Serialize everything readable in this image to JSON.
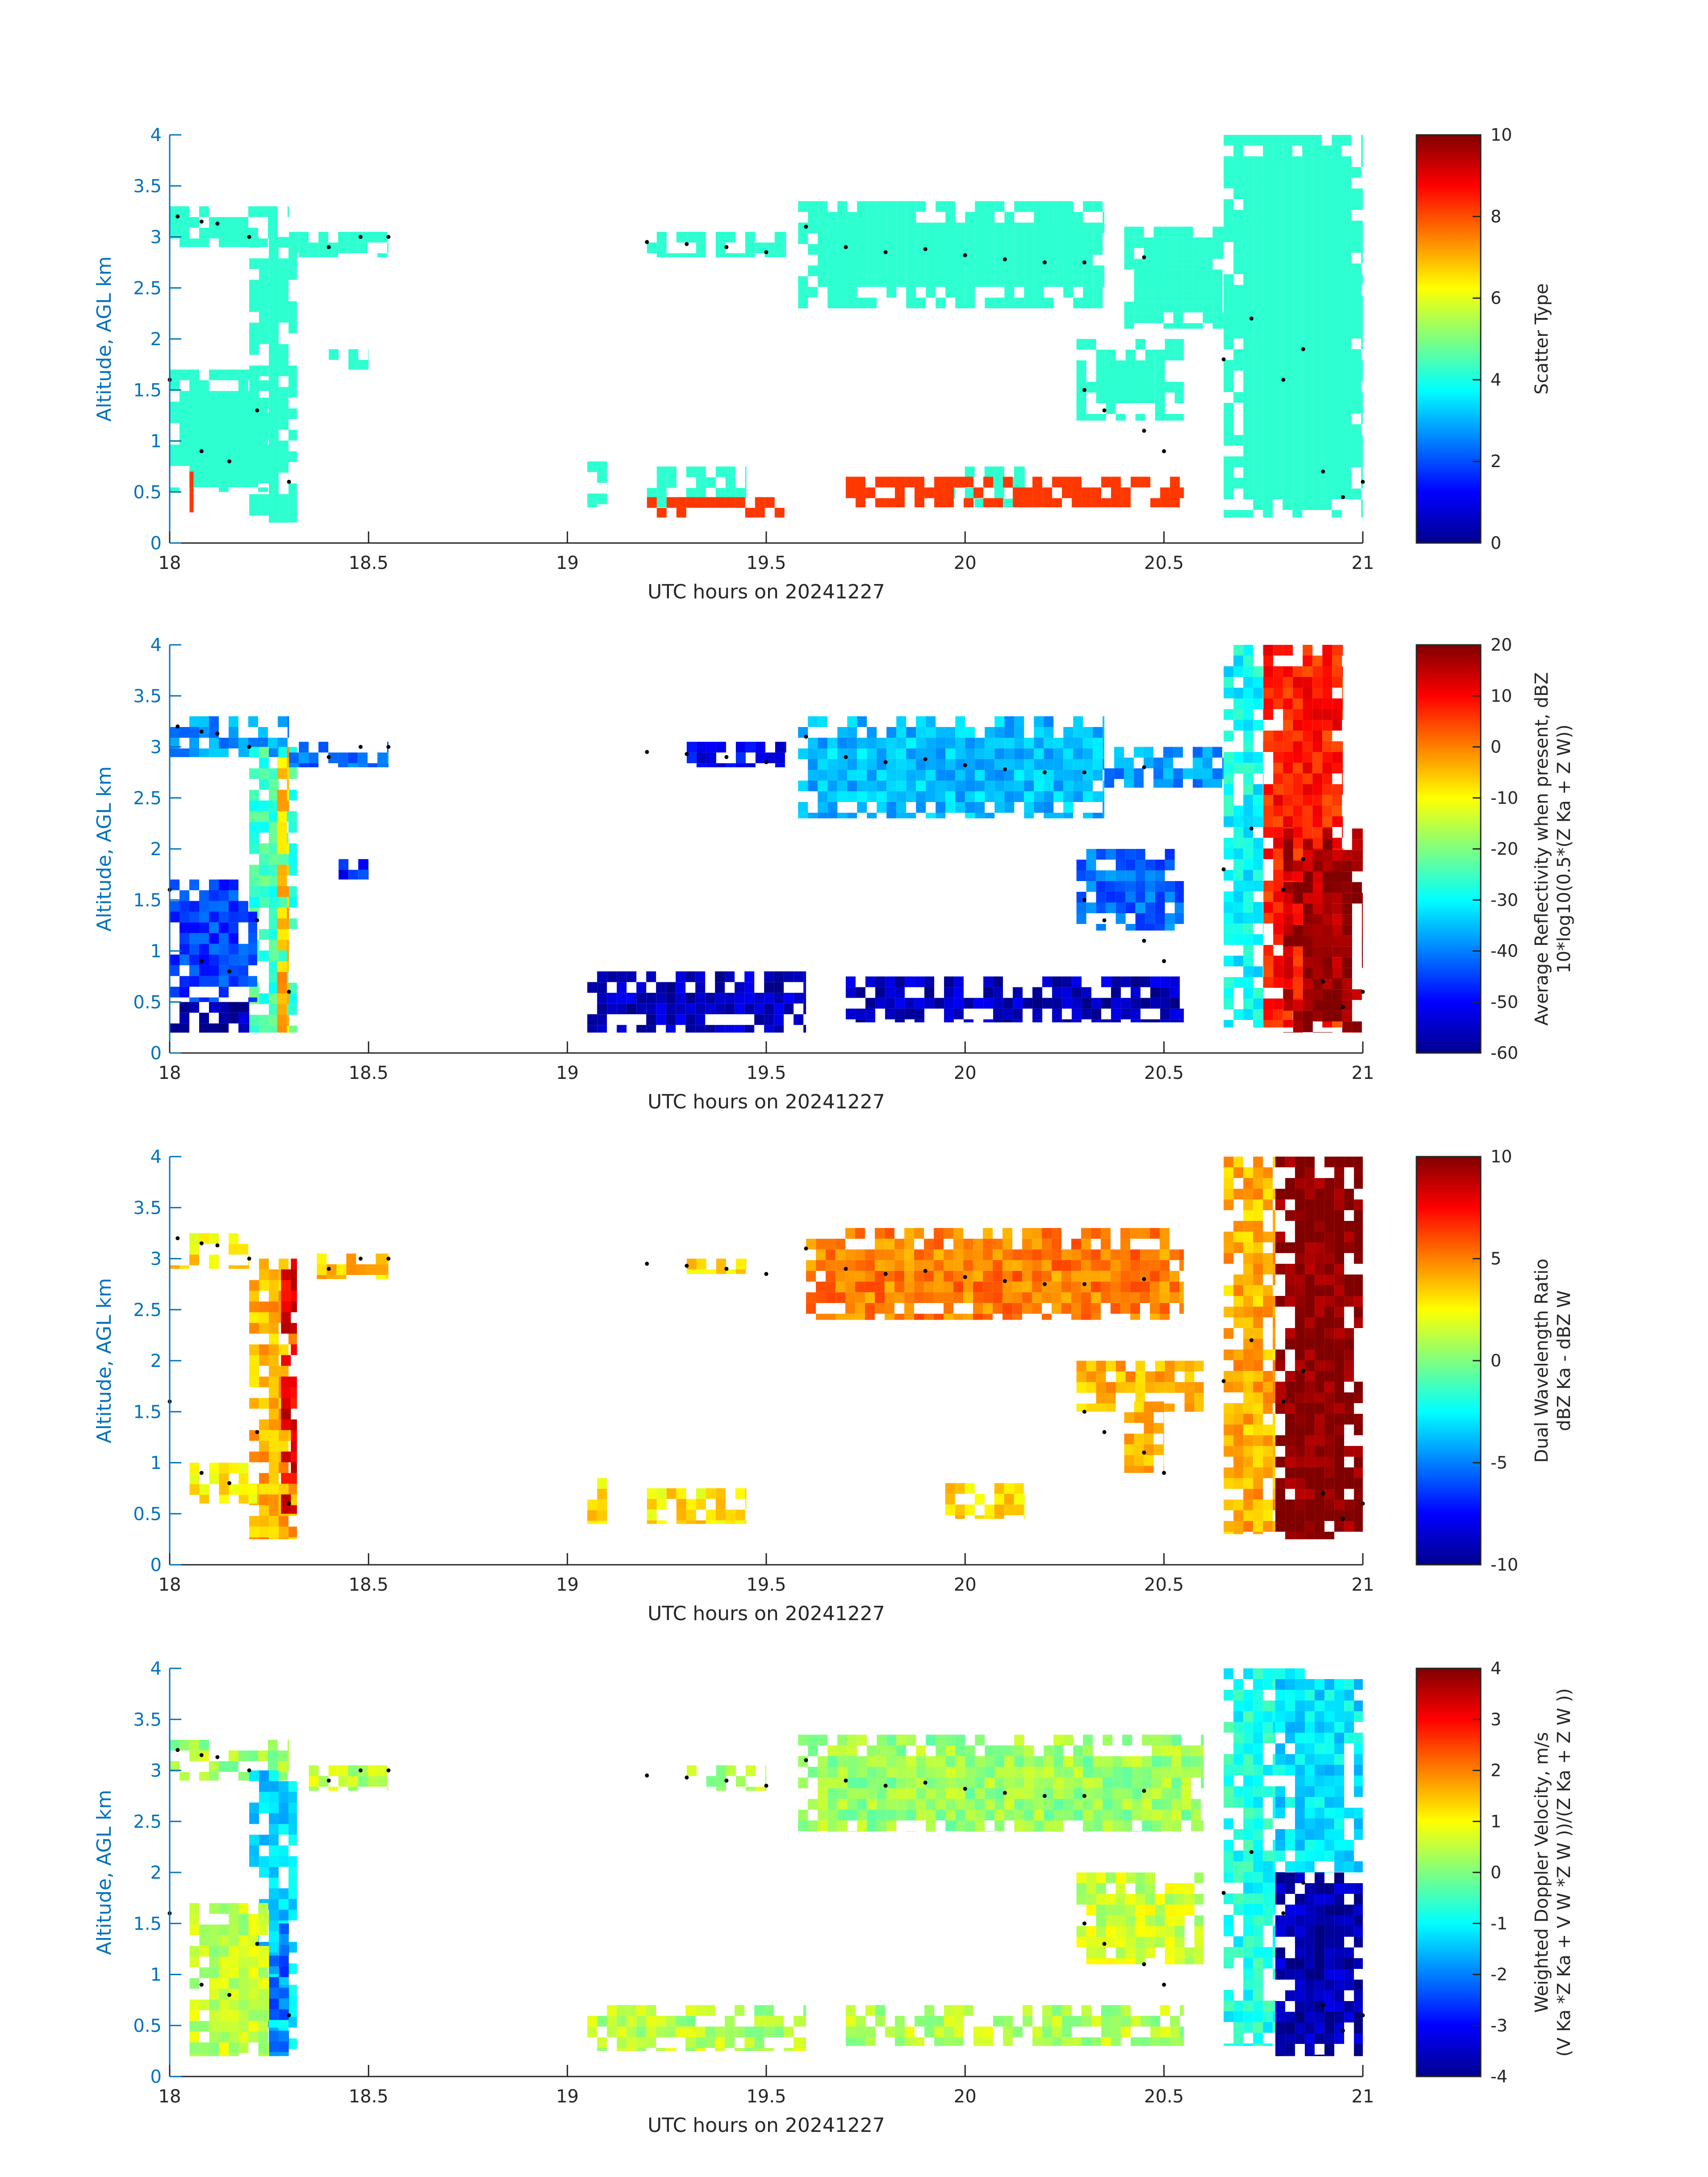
{
  "chart_data": [
    {
      "type": "heatmap",
      "panel": 1,
      "xlabel": "UTC hours on 20241227",
      "ylabel": "Altitude, AGL km",
      "xlim": [
        18,
        21
      ],
      "ylim": [
        0,
        4
      ],
      "xticks": [
        "18",
        "18.5",
        "19",
        "19.5",
        "20",
        "20.5",
        "21"
      ],
      "yticks": [
        "0",
        "0.5",
        "1",
        "1.5",
        "2",
        "2.5",
        "3",
        "3.5",
        "4"
      ],
      "colorbar": {
        "label_lines": [
          "Scatter Type"
        ],
        "range": [
          0,
          10
        ],
        "ticks": [
          "0",
          "2",
          "4",
          "6",
          "8",
          "10"
        ]
      },
      "regions": [
        {
          "x0": 18.0,
          "x1": 18.3,
          "y0": 2.9,
          "y1": 3.3,
          "value": 4.2
        },
        {
          "x0": 18.2,
          "x1": 18.32,
          "y0": 0.2,
          "y1": 3.0,
          "value": 4.2
        },
        {
          "x0": 18.0,
          "x1": 18.25,
          "y0": 0.5,
          "y1": 1.7,
          "value": 4.2
        },
        {
          "x0": 18.3,
          "x1": 18.55,
          "y0": 2.8,
          "y1": 3.05,
          "value": 4.2
        },
        {
          "x0": 18.4,
          "x1": 18.5,
          "y0": 1.7,
          "y1": 1.9,
          "value": 4.2
        },
        {
          "x0": 19.2,
          "x1": 19.55,
          "y0": 2.8,
          "y1": 3.05,
          "value": 4.2
        },
        {
          "x0": 19.58,
          "x1": 20.35,
          "y0": 2.3,
          "y1": 3.35,
          "value": 4.2
        },
        {
          "x0": 20.28,
          "x1": 20.55,
          "y0": 1.2,
          "y1": 2.0,
          "value": 4.2
        },
        {
          "x0": 20.4,
          "x1": 20.65,
          "y0": 2.1,
          "y1": 3.1,
          "value": 4.2
        },
        {
          "x0": 20.65,
          "x1": 21.0,
          "y0": 0.25,
          "y1": 4.0,
          "value": 4.2
        },
        {
          "x0": 19.05,
          "x1": 19.1,
          "y0": 0.35,
          "y1": 0.8,
          "value": 4.2
        },
        {
          "x0": 19.2,
          "x1": 19.45,
          "y0": 0.35,
          "y1": 0.75,
          "value": 4.2
        },
        {
          "x0": 19.95,
          "x1": 20.15,
          "y0": 0.35,
          "y1": 0.75,
          "value": 4.2
        },
        {
          "x0": 18.05,
          "x1": 18.06,
          "y0": 0.3,
          "y1": 0.7,
          "value": 8.2
        },
        {
          "x0": 19.2,
          "x1": 19.55,
          "y0": 0.25,
          "y1": 0.45,
          "value": 8.2
        },
        {
          "x0": 19.7,
          "x1": 20.55,
          "y0": 0.35,
          "y1": 0.65,
          "value": 8.2
        }
      ]
    },
    {
      "type": "heatmap",
      "panel": 2,
      "xlabel": "UTC hours on 20241227",
      "ylabel": "Altitude, AGL km",
      "xlim": [
        18,
        21
      ],
      "ylim": [
        0,
        4
      ],
      "xticks": [
        "18",
        "18.5",
        "19",
        "19.5",
        "20",
        "20.5",
        "21"
      ],
      "yticks": [
        "0",
        "0.5",
        "1",
        "1.5",
        "2",
        "2.5",
        "3",
        "3.5",
        "4"
      ],
      "colorbar": {
        "label_lines": [
          "Average Reflectivity when present, dBZ",
          "10*log10(0.5*(Z Ka + Z W))"
        ],
        "range": [
          -60,
          20
        ],
        "ticks": [
          "-60",
          "-50",
          "-40",
          "-30",
          "-20",
          "-10",
          "0",
          "10",
          "20"
        ]
      },
      "regions": [
        {
          "x0": 18.0,
          "x1": 18.3,
          "y0": 2.9,
          "y1": 3.3,
          "value": -38
        },
        {
          "x0": 18.2,
          "x1": 18.32,
          "y0": 0.2,
          "y1": 3.0,
          "value": -25
        },
        {
          "x0": 18.27,
          "x1": 18.3,
          "y0": 0.2,
          "y1": 3.0,
          "value": -5
        },
        {
          "x0": 18.0,
          "x1": 18.22,
          "y0": 0.5,
          "y1": 1.7,
          "value": -45
        },
        {
          "x0": 18.3,
          "x1": 18.55,
          "y0": 2.8,
          "y1": 3.05,
          "value": -42
        },
        {
          "x0": 18.4,
          "x1": 18.5,
          "y0": 1.7,
          "y1": 1.9,
          "value": -48
        },
        {
          "x0": 19.3,
          "x1": 19.55,
          "y0": 2.8,
          "y1": 3.05,
          "value": -50
        },
        {
          "x0": 19.58,
          "x1": 20.35,
          "y0": 2.3,
          "y1": 3.3,
          "value": -35
        },
        {
          "x0": 20.35,
          "x1": 20.65,
          "y0": 2.6,
          "y1": 3.0,
          "value": -38
        },
        {
          "x0": 20.28,
          "x1": 20.55,
          "y0": 1.2,
          "y1": 2.0,
          "value": -42
        },
        {
          "x0": 20.65,
          "x1": 20.75,
          "y0": 0.25,
          "y1": 4.0,
          "value": -30
        },
        {
          "x0": 20.75,
          "x1": 20.95,
          "y0": 0.25,
          "y1": 4.0,
          "value": 8
        },
        {
          "x0": 20.8,
          "x1": 21.0,
          "y0": 0.2,
          "y1": 2.2,
          "value": 17
        },
        {
          "x0": 19.05,
          "x1": 19.6,
          "y0": 0.2,
          "y1": 0.8,
          "value": -55
        },
        {
          "x0": 19.7,
          "x1": 20.55,
          "y0": 0.3,
          "y1": 0.75,
          "value": -55
        },
        {
          "x0": 18.0,
          "x1": 18.2,
          "y0": 0.2,
          "y1": 0.5,
          "value": -56
        }
      ]
    },
    {
      "type": "heatmap",
      "panel": 3,
      "xlabel": "UTC hours on 20241227",
      "ylabel": "Altitude, AGL km",
      "xlim": [
        18,
        21
      ],
      "ylim": [
        0,
        4
      ],
      "xticks": [
        "18",
        "18.5",
        "19",
        "19.5",
        "20",
        "20.5",
        "21"
      ],
      "yticks": [
        "0",
        "0.5",
        "1",
        "1.5",
        "2",
        "2.5",
        "3",
        "3.5",
        "4"
      ],
      "colorbar": {
        "label_lines": [
          "Dual Wavelength Ratio",
          "dBZ Ka - dBZ W"
        ],
        "range": [
          -10,
          10
        ],
        "ticks": [
          "-10",
          "-5",
          "0",
          "5",
          "10"
        ]
      },
      "regions": [
        {
          "x0": 18.0,
          "x1": 18.2,
          "y0": 2.9,
          "y1": 3.25,
          "value": 3
        },
        {
          "x0": 18.2,
          "x1": 18.32,
          "y0": 0.25,
          "y1": 3.0,
          "value": 4
        },
        {
          "x0": 18.28,
          "x1": 18.32,
          "y0": 0.5,
          "y1": 3.0,
          "value": 8
        },
        {
          "x0": 18.05,
          "x1": 18.22,
          "y0": 0.6,
          "y1": 1.0,
          "value": 3
        },
        {
          "x0": 18.37,
          "x1": 18.55,
          "y0": 2.8,
          "y1": 3.05,
          "value": 3.5
        },
        {
          "x0": 19.3,
          "x1": 19.45,
          "y0": 2.85,
          "y1": 3.0,
          "value": 3
        },
        {
          "x0": 19.6,
          "x1": 20.55,
          "y0": 2.4,
          "y1": 3.3,
          "value": 5
        },
        {
          "x0": 20.28,
          "x1": 20.6,
          "y0": 1.5,
          "y1": 2.0,
          "value": 4
        },
        {
          "x0": 20.4,
          "x1": 20.5,
          "y0": 0.9,
          "y1": 1.6,
          "value": 4
        },
        {
          "x0": 20.65,
          "x1": 20.78,
          "y0": 0.3,
          "y1": 4.0,
          "value": 4
        },
        {
          "x0": 20.78,
          "x1": 21.0,
          "y0": 0.25,
          "y1": 4.0,
          "value": 10
        },
        {
          "x0": 19.05,
          "x1": 19.1,
          "y0": 0.4,
          "y1": 0.85,
          "value": 3
        },
        {
          "x0": 19.2,
          "x1": 19.45,
          "y0": 0.4,
          "y1": 0.75,
          "value": 3
        },
        {
          "x0": 19.95,
          "x1": 20.15,
          "y0": 0.45,
          "y1": 0.8,
          "value": 3
        }
      ]
    },
    {
      "type": "heatmap",
      "panel": 4,
      "xlabel": "UTC hours on 20241227",
      "ylabel": "Altitude, AGL km",
      "xlim": [
        18,
        21
      ],
      "ylim": [
        0,
        4
      ],
      "xticks": [
        "18",
        "18.5",
        "19",
        "19.5",
        "20",
        "20.5",
        "21"
      ],
      "yticks": [
        "0",
        "0.5",
        "1",
        "1.5",
        "2",
        "2.5",
        "3",
        "3.5",
        "4"
      ],
      "colorbar": {
        "label_lines": [
          "Weighted Doppler Velocity, m/s",
          "(V Ka *Z Ka + V W *Z W ))/(Z Ka + Z W ))"
        ],
        "range": [
          -4,
          4
        ],
        "ticks": [
          "-4",
          "-3",
          "-2",
          "-1",
          "0",
          "1",
          "2",
          "3",
          "4"
        ]
      },
      "regions": [
        {
          "x0": 18.0,
          "x1": 18.3,
          "y0": 2.9,
          "y1": 3.3,
          "value": 0.3
        },
        {
          "x0": 18.2,
          "x1": 18.32,
          "y0": 0.2,
          "y1": 3.0,
          "value": -1.3
        },
        {
          "x0": 18.25,
          "x1": 18.3,
          "y0": 0.2,
          "y1": 1.5,
          "value": -2.2
        },
        {
          "x0": 18.05,
          "x1": 18.25,
          "y0": 0.2,
          "y1": 1.7,
          "value": 0.5
        },
        {
          "x0": 18.35,
          "x1": 18.55,
          "y0": 2.8,
          "y1": 3.05,
          "value": 0.5
        },
        {
          "x0": 19.3,
          "x1": 19.5,
          "y0": 2.8,
          "y1": 3.05,
          "value": 0.4
        },
        {
          "x0": 19.58,
          "x1": 20.6,
          "y0": 2.4,
          "y1": 3.35,
          "value": 0.2
        },
        {
          "x0": 20.28,
          "x1": 20.6,
          "y0": 1.1,
          "y1": 2.0,
          "value": 0.6
        },
        {
          "x0": 20.65,
          "x1": 20.78,
          "y0": 0.3,
          "y1": 4.0,
          "value": -0.8
        },
        {
          "x0": 20.78,
          "x1": 21.0,
          "y0": 2.0,
          "y1": 4.0,
          "value": -1.2
        },
        {
          "x0": 20.78,
          "x1": 21.0,
          "y0": 0.2,
          "y1": 2.0,
          "value": -3.6
        },
        {
          "x0": 19.05,
          "x1": 19.6,
          "y0": 0.25,
          "y1": 0.7,
          "value": 0.4
        },
        {
          "x0": 19.7,
          "x1": 20.55,
          "y0": 0.3,
          "y1": 0.7,
          "value": 0.4
        }
      ]
    }
  ],
  "layer_markers": {
    "color": "#000000",
    "upper": [
      [
        18.02,
        3.2
      ],
      [
        18.08,
        3.15
      ],
      [
        18.12,
        3.13
      ],
      [
        18.2,
        3.0
      ],
      [
        18.4,
        2.9
      ],
      [
        18.48,
        3.0
      ],
      [
        18.55,
        3.0
      ],
      [
        19.2,
        2.95
      ],
      [
        19.3,
        2.93
      ],
      [
        19.4,
        2.9
      ],
      [
        19.5,
        2.85
      ],
      [
        19.6,
        3.1
      ],
      [
        19.7,
        2.9
      ],
      [
        19.8,
        2.85
      ],
      [
        19.9,
        2.88
      ],
      [
        20.0,
        2.82
      ],
      [
        20.1,
        2.78
      ],
      [
        20.2,
        2.75
      ],
      [
        20.3,
        2.75
      ],
      [
        20.45,
        2.8
      ]
    ],
    "lower": [
      [
        18.0,
        1.6
      ],
      [
        18.08,
        0.9
      ],
      [
        18.15,
        0.8
      ],
      [
        18.22,
        1.3
      ],
      [
        18.3,
        0.6
      ],
      [
        20.3,
        1.5
      ],
      [
        20.35,
        1.3
      ],
      [
        20.45,
        1.1
      ],
      [
        20.5,
        0.9
      ],
      [
        20.65,
        1.8
      ],
      [
        20.72,
        2.2
      ],
      [
        20.8,
        1.6
      ],
      [
        20.85,
        1.9
      ],
      [
        20.9,
        0.7
      ],
      [
        20.95,
        0.45
      ],
      [
        21.0,
        0.6
      ]
    ]
  }
}
